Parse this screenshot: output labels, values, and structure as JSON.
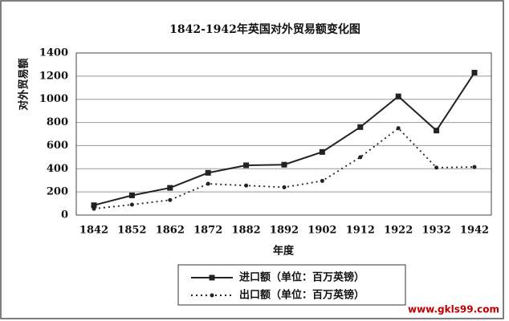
{
  "chart_data": {
    "type": "line",
    "title": "1842-1942年英国对外贸易额变化图",
    "y_label": "对外贸易额",
    "x_label": "年度",
    "watermark": "www.gkls99.com",
    "categories": [
      "1842",
      "1852",
      "1862",
      "1872",
      "1882",
      "1892",
      "1902",
      "1912",
      "1922",
      "1932",
      "1942"
    ],
    "series": [
      {
        "name": "进口额（单位：百万英镑）",
        "color": "#222222",
        "style": "solid",
        "values": [
          85,
          170,
          235,
          365,
          430,
          435,
          545,
          760,
          1025,
          730,
          1230
        ]
      },
      {
        "name": "出口额（单位：百万英镑）",
        "color": "#222222",
        "style": "dotted",
        "values": [
          55,
          90,
          130,
          270,
          255,
          240,
          295,
          500,
          750,
          410,
          415
        ]
      }
    ],
    "ylim": [
      0,
      1400
    ],
    "yticks": [
      0,
      200,
      400,
      600,
      800,
      1000,
      1200,
      1400
    ],
    "grid": true
  }
}
